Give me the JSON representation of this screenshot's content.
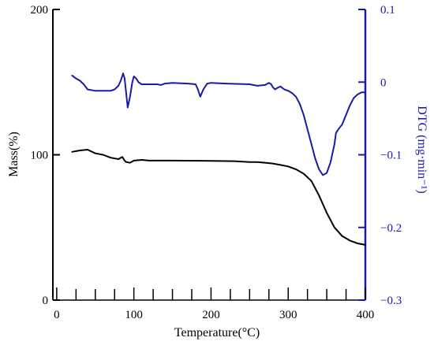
{
  "colors": {
    "mass": "#000000",
    "dtg": "#1a1aa8",
    "axis_left": "#000000",
    "axis_right": "#1a1aa8"
  },
  "chart_data": {
    "type": "line",
    "xlabel": "Temperature(°C)",
    "ylabel_left": "Mass(%)",
    "ylabel_right": "DTG (mg·min⁻¹)",
    "xlim": [
      -5,
      400
    ],
    "ylim_left": [
      0,
      200
    ],
    "ylim_right": [
      -0.3,
      0.1
    ],
    "grid": false,
    "x_ticks": [
      0,
      100,
      200,
      300,
      400
    ],
    "x_tick_labels": [
      "0",
      "100",
      "200",
      "300",
      "400"
    ],
    "y_left_ticks": [
      0,
      100,
      200
    ],
    "y_left_tick_labels": [
      "0",
      "100",
      "200"
    ],
    "y_right_ticks": [
      0.1,
      0,
      -0.1,
      -0.2,
      -0.3
    ],
    "y_right_tick_labels": [
      "0.1",
      "0",
      "−0.1",
      "−0.2",
      "−0.3"
    ],
    "series": [
      {
        "axis": "left",
        "x": [
          20,
          30,
          40,
          50,
          60,
          70,
          80,
          85,
          88,
          90,
          95,
          100,
          110,
          120,
          150,
          200,
          230,
          250,
          260,
          270,
          280,
          290,
          300,
          310,
          320,
          330,
          340,
          350,
          360,
          370,
          380,
          390,
          400
        ],
        "y": [
          102,
          103,
          103.5,
          101,
          100,
          98,
          97,
          98.5,
          96,
          95,
          94.5,
          96,
          96.5,
          96,
          96,
          95.8,
          95.6,
          95,
          95,
          94.5,
          94,
          93,
          92,
          90,
          87,
          82,
          72,
          60,
          50,
          44,
          41,
          39,
          38
        ]
      },
      {
        "axis": "right",
        "x": [
          20,
          25,
          30,
          35,
          40,
          50,
          60,
          70,
          75,
          80,
          83,
          86,
          88,
          90,
          92,
          95,
          98,
          100,
          103,
          106,
          110,
          115,
          130,
          135,
          140,
          150,
          170,
          180,
          183,
          186,
          190,
          195,
          200,
          220,
          250,
          260,
          270,
          275,
          278,
          280,
          283,
          286,
          290,
          295,
          300,
          305,
          310,
          315,
          320,
          325,
          330,
          335,
          340,
          345,
          350,
          355,
          360,
          362,
          365,
          370,
          375,
          380,
          385,
          390,
          395,
          400
        ],
        "y": [
          0.009,
          0.005,
          0.002,
          -0.003,
          -0.01,
          -0.012,
          -0.012,
          -0.012,
          -0.01,
          -0.005,
          0.002,
          0.012,
          0.005,
          -0.015,
          -0.035,
          -0.02,
          0.0,
          0.008,
          0.005,
          0.0,
          -0.003,
          -0.003,
          -0.003,
          -0.004,
          -0.002,
          -0.001,
          -0.002,
          -0.003,
          -0.01,
          -0.02,
          -0.01,
          -0.002,
          -0.001,
          -0.002,
          -0.003,
          -0.005,
          -0.004,
          -0.001,
          -0.003,
          -0.007,
          -0.01,
          -0.008,
          -0.006,
          -0.01,
          -0.012,
          -0.015,
          -0.02,
          -0.03,
          -0.045,
          -0.065,
          -0.085,
          -0.105,
          -0.12,
          -0.128,
          -0.125,
          -0.11,
          -0.085,
          -0.07,
          -0.065,
          -0.058,
          -0.045,
          -0.032,
          -0.022,
          -0.017,
          -0.014,
          -0.014
        ]
      }
    ]
  }
}
